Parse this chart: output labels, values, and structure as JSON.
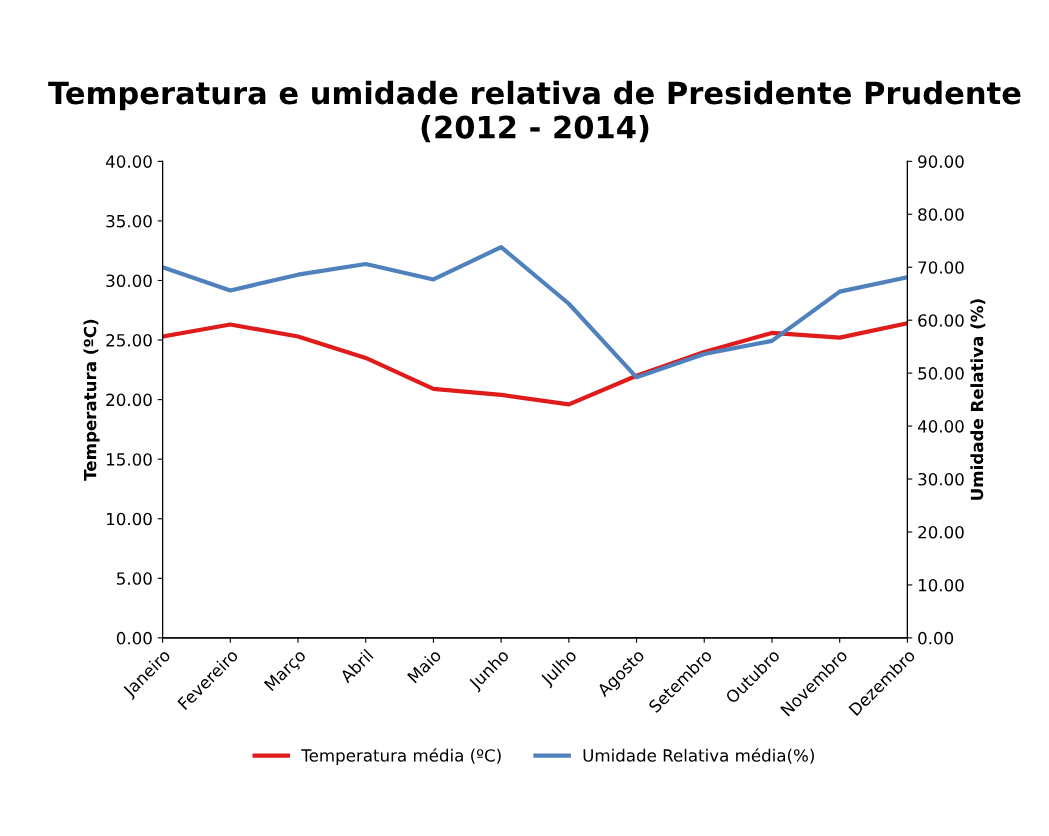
{
  "chart_data": {
    "type": "line",
    "title": "Temperatura e umidade relativa de Presidente Prudente (2012 - 2014)",
    "ylabel": "Temperatura (ºC)",
    "y2label": "Umidade Relativa (%)",
    "categories": [
      "Janeiro",
      "Fevereiro",
      "Março",
      "Abril",
      "Maio",
      "Junho",
      "Julho",
      "Agosto",
      "Setembro",
      "Outubro",
      "Novembro",
      "Dezembro"
    ],
    "series": [
      {
        "name": "Temperatura média (ºC)",
        "color": "#e01b1b",
        "values": [
          25.3,
          26.3,
          25.3,
          23.5,
          20.9,
          20.4,
          19.6,
          22.0,
          24.0,
          25.6,
          25.2,
          26.4
        ]
      },
      {
        "name": "Umidade Relativa média(%)",
        "color": "#4f81bd",
        "axis": "y2",
        "values": [
          70.0,
          65.6,
          68.6,
          70.6,
          67.7,
          73.8,
          63.1,
          49.2,
          53.6,
          56.1,
          65.4,
          68.1
        ]
      }
    ],
    "ylim": [
      0,
      40
    ],
    "yticks": [
      {
        "value": 0,
        "label": "0.00"
      },
      {
        "value": 5,
        "label": "5.00"
      },
      {
        "value": 10,
        "label": "10.00"
      },
      {
        "value": 15,
        "label": "15.00"
      },
      {
        "value": 20,
        "label": "20.00"
      },
      {
        "value": 25,
        "label": "25.00"
      },
      {
        "value": 30,
        "label": "30.00"
      },
      {
        "value": 35,
        "label": "35.00"
      },
      {
        "value": 40,
        "label": "40.00"
      }
    ],
    "y2lim": [
      0,
      90
    ],
    "y2ticks": [
      {
        "value": 0,
        "label": "0.00"
      },
      {
        "value": 10,
        "label": "10.00"
      },
      {
        "value": 20,
        "label": "20.00"
      },
      {
        "value": 30,
        "label": "30.00"
      },
      {
        "value": 40,
        "label": "40.00"
      },
      {
        "value": 50,
        "label": "50.00"
      },
      {
        "value": 60,
        "label": "60.00"
      },
      {
        "value": 70,
        "label": "70.00"
      },
      {
        "value": 80,
        "label": "80.00"
      },
      {
        "value": 90,
        "label": "90.00"
      }
    ],
    "grid": false,
    "legend": "bottom",
    "marker": "none",
    "line_style": "solid"
  }
}
